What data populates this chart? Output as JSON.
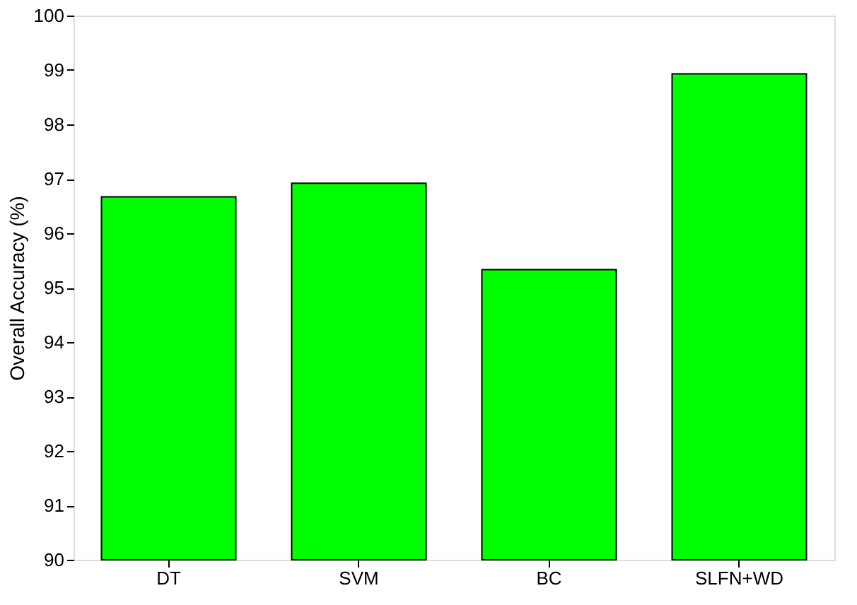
{
  "chart_data": {
    "type": "bar",
    "ylabel": "Overall Accuracy (%)",
    "categories": [
      "DT",
      "SVM",
      "BC",
      "SLFN+WD"
    ],
    "values": [
      96.67,
      96.92,
      95.33,
      98.93
    ],
    "color": "#00ff00",
    "ylim": [
      90,
      100
    ],
    "yticks": [
      90,
      91,
      92,
      93,
      94,
      95,
      96,
      97,
      98,
      99,
      100
    ],
    "grid": false
  }
}
